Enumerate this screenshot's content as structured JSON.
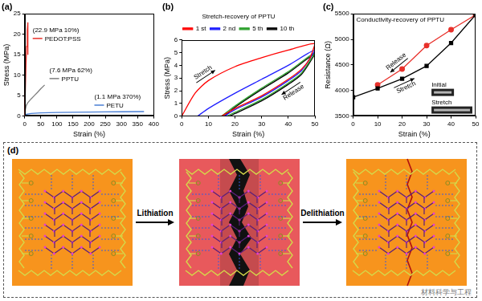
{
  "chart_data": [
    {
      "type": "line",
      "title": "(a)",
      "x_label": "Strain (%)",
      "y_label": "Stress (MPa)",
      "xlim": [
        0,
        400
      ],
      "xticks": [
        0,
        50,
        100,
        150,
        200,
        250,
        300,
        350,
        400
      ],
      "ylim": [
        0,
        25
      ],
      "yticks": [
        0,
        5,
        10,
        15,
        20,
        25
      ],
      "grid": false,
      "series": [
        {
          "name": "PEDOT:PSS",
          "color": "#e8302a",
          "annotation": "(22.9 MPa 10%)",
          "x": [
            0,
            2,
            4,
            6,
            8,
            10,
            10
          ],
          "values": [
            0,
            6,
            12,
            17,
            21,
            22.9,
            15
          ]
        },
        {
          "name": "PPTU",
          "color": "#7f7f7f",
          "annotation": "(7.6 MPa 62%)",
          "x": [
            0,
            2,
            5,
            10,
            20,
            30,
            40,
            50,
            62
          ],
          "values": [
            0,
            1.5,
            2.6,
            3.3,
            4.2,
            5.0,
            5.8,
            6.7,
            7.6
          ]
        },
        {
          "name": "PETU",
          "color": "#4a7fd4",
          "annotation": "(1.1 MPa 370%)",
          "x": [
            0,
            5,
            20,
            50,
            100,
            150,
            200,
            250,
            300,
            370
          ],
          "values": [
            0,
            0.45,
            0.65,
            0.78,
            0.86,
            0.92,
            0.97,
            1.01,
            1.05,
            1.1
          ]
        }
      ]
    },
    {
      "type": "line",
      "title": "(b)",
      "subtitle": "Stretch-recovery of PPTU",
      "legend": "top",
      "annotations": [
        "Stretch",
        "Release"
      ],
      "x_label": "Strain (%)",
      "y_label": "Stress (MPa)",
      "xlim": [
        0,
        50
      ],
      "xticks": [
        0,
        10,
        20,
        30,
        40,
        50
      ],
      "ylim": [
        0,
        6
      ],
      "yticks": [
        0,
        1,
        2,
        3,
        4,
        5,
        6
      ],
      "grid": false,
      "series": [
        {
          "name": "1 st",
          "color": "#ff0000",
          "x": [
            0,
            5,
            10,
            20,
            30,
            40,
            50,
            48,
            45,
            40,
            30,
            20,
            15
          ],
          "values": [
            0,
            1.8,
            2.8,
            3.9,
            4.6,
            5.2,
            5.7,
            4.5,
            3.7,
            2.9,
            1.6,
            0.6,
            0
          ]
        },
        {
          "name": "2 nd",
          "color": "#1f1fff",
          "x": [
            6,
            10,
            20,
            30,
            40,
            50,
            45,
            40,
            30,
            20,
            16
          ],
          "values": [
            0,
            0.6,
            1.8,
            2.9,
            4.0,
            5.2,
            3.6,
            2.8,
            1.5,
            0.5,
            0
          ]
        },
        {
          "name": "5 th",
          "color": "#2ca02c",
          "x": [
            15,
            20,
            30,
            40,
            50,
            45,
            40,
            30,
            20,
            17
          ],
          "values": [
            0,
            0.8,
            2.2,
            3.5,
            5.0,
            3.4,
            2.6,
            1.3,
            0.3,
            0
          ]
        },
        {
          "name": "10 th",
          "color": "#000000",
          "x": [
            16,
            20,
            30,
            40,
            50,
            45,
            40,
            30,
            20,
            18
          ],
          "values": [
            0,
            0.7,
            2.1,
            3.4,
            4.9,
            3.3,
            2.5,
            1.2,
            0.2,
            0
          ]
        }
      ]
    },
    {
      "type": "line",
      "title": "(c)",
      "subtitle": "Conductivity-recovery of PPTU",
      "inset_labels": [
        "Initial",
        "Stretch"
      ],
      "x_label": "Strain (%)",
      "y_label": "Resistance (Ω)",
      "xlim": [
        0,
        50
      ],
      "xticks": [
        0,
        10,
        20,
        30,
        40,
        50
      ],
      "ylim": [
        3500,
        5500
      ],
      "yticks": [
        3500,
        4000,
        4500,
        5000,
        5500
      ],
      "grid": false,
      "series": [
        {
          "name": "Stretch",
          "color": "#000000",
          "marker": "square",
          "x": [
            0,
            10,
            20,
            30,
            40,
            50
          ],
          "values": [
            3870,
            4040,
            4230,
            4480,
            4930,
            5480
          ]
        },
        {
          "name": "Release",
          "color": "#e8302a",
          "marker": "circle",
          "x": [
            50,
            40,
            30,
            20,
            10
          ],
          "values": [
            5480,
            5190,
            4880,
            4420,
            4110
          ]
        }
      ]
    }
  ],
  "diagram": {
    "label": "(d)",
    "steps": [
      "Lithiation",
      "Delithiation"
    ]
  },
  "watermark": "材料科学与工程"
}
